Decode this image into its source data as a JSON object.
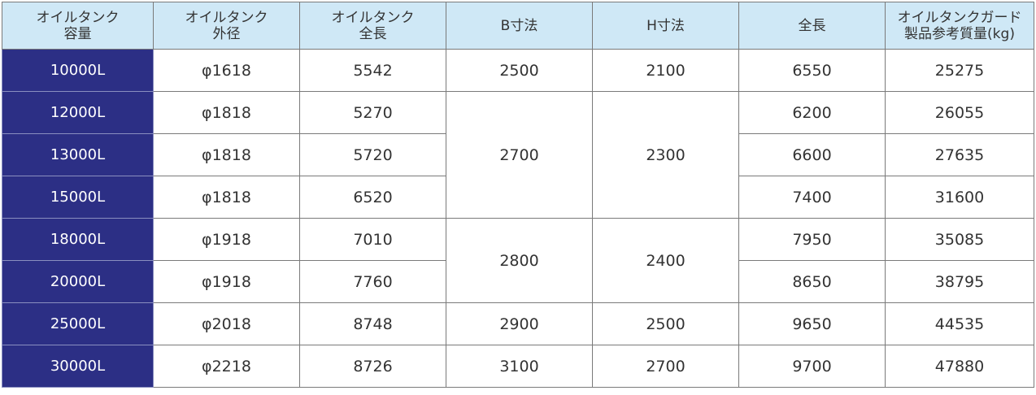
{
  "headers": {
    "capacity": [
      "オイルタンク",
      "容量"
    ],
    "diameter": [
      "オイルタンク",
      "外径"
    ],
    "tank_length": [
      "オイルタンク",
      "全長"
    ],
    "b": "B寸法",
    "h": "H寸法",
    "total_length": "全長",
    "mass": [
      "オイルタンクガード",
      "製品参考質量(kg)"
    ]
  },
  "rows": [
    {
      "capacity": "10000L",
      "diameter": "φ1618",
      "length": "5542",
      "total_length": "6550",
      "mass": "25275"
    },
    {
      "capacity": "12000L",
      "diameter": "φ1818",
      "length": "5270",
      "total_length": "6200",
      "mass": "26055"
    },
    {
      "capacity": "13000L",
      "diameter": "φ1818",
      "length": "5720",
      "total_length": "6600",
      "mass": "27635"
    },
    {
      "capacity": "15000L",
      "diameter": "φ1818",
      "length": "6520",
      "total_length": "7400",
      "mass": "31600"
    },
    {
      "capacity": "18000L",
      "diameter": "φ1918",
      "length": "7010",
      "total_length": "7950",
      "mass": "35085"
    },
    {
      "capacity": "20000L",
      "diameter": "φ1918",
      "length": "7760",
      "total_length": "8650",
      "mass": "38795"
    },
    {
      "capacity": "25000L",
      "diameter": "φ2018",
      "length": "8748",
      "total_length": "9650",
      "mass": "44535"
    },
    {
      "capacity": "30000L",
      "diameter": "φ2218",
      "length": "8726",
      "total_length": "9700",
      "mass": "47880"
    }
  ],
  "b_groups": [
    "2500",
    "2700",
    "2800",
    "2900",
    "3100"
  ],
  "h_groups": [
    "2100",
    "2300",
    "2400",
    "2500",
    "2700"
  ],
  "colors": {
    "header_bg": "#cfe8f6",
    "capacity_bg": "#2c2f85",
    "border": "#7a7a7a"
  }
}
